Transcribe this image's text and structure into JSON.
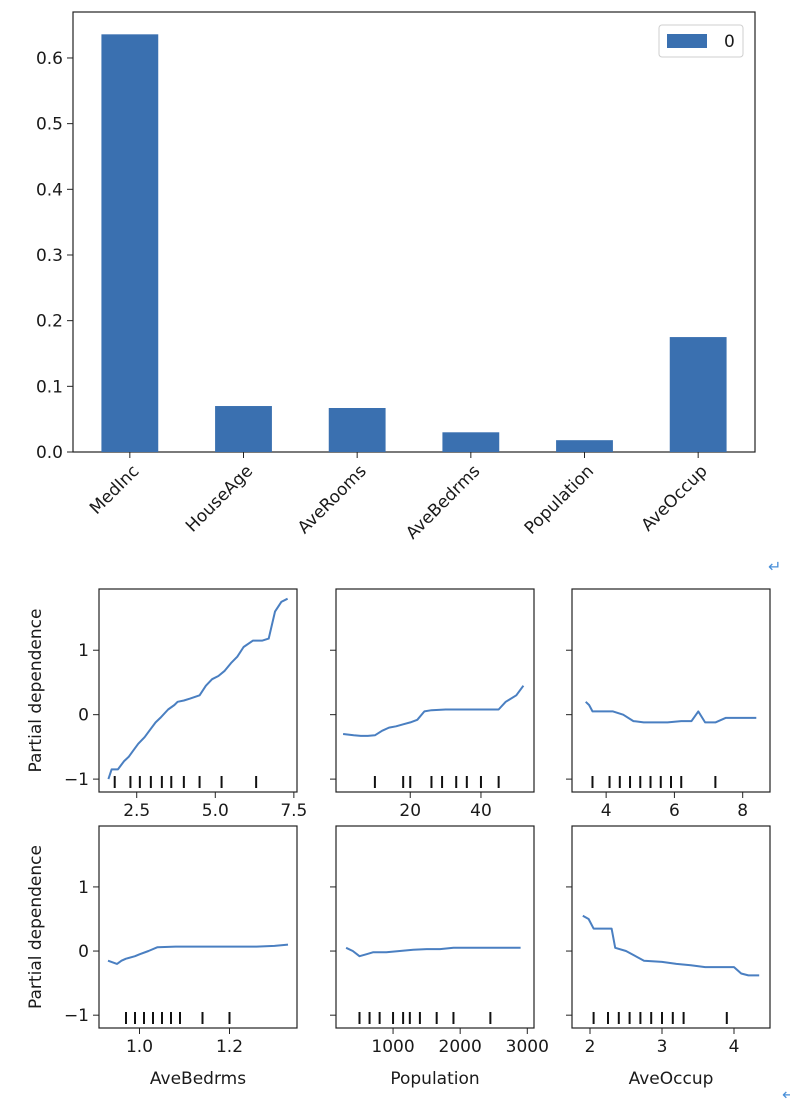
{
  "chart_data": [
    {
      "type": "bar",
      "title": "",
      "xlabel": "",
      "ylabel": "",
      "categories": [
        "MedInc",
        "HouseAge",
        "AveRooms",
        "AveBedrms",
        "Population",
        "AveOccup"
      ],
      "series": [
        {
          "name": "0",
          "values": [
            0.636,
            0.07,
            0.067,
            0.03,
            0.018,
            0.175
          ]
        }
      ],
      "ylim": [
        0,
        0.67
      ],
      "yticks": [
        "0.0",
        "0.1",
        "0.2",
        "0.3",
        "0.4",
        "0.5",
        "0.6"
      ],
      "legend": "top-right",
      "color": "#3a70b0",
      "grid": false
    },
    {
      "type": "line",
      "xlabel": "",
      "ylabel": "Partial dependence",
      "xlim": [
        1.3,
        7.6
      ],
      "ylim": [
        -1.2,
        1.95
      ],
      "xticks": [
        "2.5",
        "5.0",
        "7.5"
      ],
      "yticks": [
        "-1",
        "0",
        "1"
      ],
      "x": [
        1.6,
        1.7,
        1.9,
        2.1,
        2.25,
        2.4,
        2.55,
        2.75,
        2.9,
        3.1,
        3.25,
        3.5,
        3.7,
        3.8,
        4.0,
        4.2,
        4.5,
        4.7,
        4.9,
        5.1,
        5.3,
        5.5,
        5.7,
        5.9,
        6.2,
        6.5,
        6.7,
        6.9,
        7.1,
        7.3
      ],
      "y": [
        -1.0,
        -0.85,
        -0.85,
        -0.72,
        -0.65,
        -0.55,
        -0.45,
        -0.35,
        -0.25,
        -0.12,
        -0.05,
        0.08,
        0.15,
        0.2,
        0.22,
        0.25,
        0.3,
        0.45,
        0.55,
        0.6,
        0.68,
        0.8,
        0.9,
        1.05,
        1.15,
        1.15,
        1.18,
        1.6,
        1.75,
        1.8
      ],
      "rug": [
        1.8,
        2.3,
        2.6,
        2.95,
        3.3,
        3.6,
        4.0,
        4.5,
        5.2,
        6.3
      ],
      "grid": false
    },
    {
      "type": "line",
      "xlabel": "",
      "ylabel": "",
      "xlim": [
        -1,
        55
      ],
      "ylim": [
        -1.2,
        1.95
      ],
      "xticks": [
        "20",
        "40"
      ],
      "yticks": [
        "-1",
        "0",
        "1"
      ],
      "x": [
        1,
        4,
        6,
        8,
        10,
        12,
        14,
        16,
        18,
        20,
        22,
        24,
        26,
        30,
        35,
        40,
        45,
        47,
        50,
        52
      ],
      "y": [
        -0.3,
        -0.32,
        -0.33,
        -0.33,
        -0.32,
        -0.25,
        -0.2,
        -0.18,
        -0.15,
        -0.12,
        -0.08,
        0.05,
        0.07,
        0.08,
        0.08,
        0.08,
        0.08,
        0.2,
        0.3,
        0.45
      ],
      "rug": [
        10,
        18,
        20,
        26,
        29,
        33,
        36,
        40,
        45
      ],
      "grid": false
    },
    {
      "type": "line",
      "xlabel": "",
      "ylabel": "",
      "xlim": [
        3.0,
        8.8
      ],
      "ylim": [
        -1.2,
        1.95
      ],
      "xticks": [
        "4",
        "6",
        "8"
      ],
      "yticks": [
        "-1",
        "0",
        "1"
      ],
      "x": [
        3.4,
        3.5,
        3.6,
        3.9,
        4.2,
        4.5,
        4.8,
        5.1,
        5.4,
        5.8,
        6.2,
        6.5,
        6.7,
        6.9,
        7.2,
        7.5,
        7.8,
        8.1,
        8.4
      ],
      "y": [
        0.2,
        0.15,
        0.05,
        0.05,
        0.05,
        0.0,
        -0.1,
        -0.12,
        -0.12,
        -0.12,
        -0.1,
        -0.1,
        0.05,
        -0.12,
        -0.12,
        -0.05,
        -0.05,
        -0.05,
        -0.05
      ],
      "rug": [
        3.6,
        4.1,
        4.4,
        4.7,
        5.0,
        5.3,
        5.6,
        5.9,
        6.2,
        7.2
      ],
      "grid": false
    },
    {
      "type": "line",
      "xlabel": "AveBedrms",
      "ylabel": "Partial dependence",
      "xlim": [
        0.91,
        1.35
      ],
      "ylim": [
        -1.2,
        1.95
      ],
      "xticks": [
        "1.0",
        "1.2"
      ],
      "yticks": [
        "-1",
        "0",
        "1"
      ],
      "x": [
        0.93,
        0.95,
        0.96,
        0.97,
        0.99,
        1.0,
        1.02,
        1.04,
        1.08,
        1.12,
        1.2,
        1.26,
        1.3,
        1.33
      ],
      "y": [
        -0.15,
        -0.2,
        -0.15,
        -0.12,
        -0.08,
        -0.05,
        0.0,
        0.06,
        0.07,
        0.07,
        0.07,
        0.07,
        0.08,
        0.1
      ],
      "rug": [
        0.97,
        0.99,
        1.01,
        1.03,
        1.05,
        1.07,
        1.09,
        1.14,
        1.2
      ],
      "grid": false
    },
    {
      "type": "line",
      "xlabel": "Population",
      "ylabel": "",
      "xlim": [
        150,
        3100
      ],
      "ylim": [
        -1.2,
        1.95
      ],
      "xticks": [
        "1000",
        "2000",
        "3000"
      ],
      "yticks": [
        "-1",
        "0",
        "1"
      ],
      "x": [
        300,
        400,
        500,
        600,
        700,
        900,
        1100,
        1300,
        1500,
        1700,
        1900,
        2100,
        2400,
        2700,
        2900
      ],
      "y": [
        0.05,
        0.0,
        -0.08,
        -0.05,
        -0.02,
        -0.02,
        0.0,
        0.02,
        0.03,
        0.03,
        0.05,
        0.05,
        0.05,
        0.05,
        0.05
      ],
      "rug": [
        500,
        650,
        800,
        1000,
        1150,
        1250,
        1400,
        1650,
        1900,
        2450
      ],
      "grid": false
    },
    {
      "type": "line",
      "xlabel": "AveOccup",
      "ylabel": "",
      "xlim": [
        1.75,
        4.5
      ],
      "ylim": [
        -1.2,
        1.95
      ],
      "xticks": [
        "2",
        "3",
        "4"
      ],
      "yticks": [
        "-1",
        "0",
        "1"
      ],
      "x": [
        1.9,
        1.98,
        2.05,
        2.3,
        2.35,
        2.5,
        2.75,
        3.0,
        3.2,
        3.4,
        3.6,
        3.8,
        4.0,
        4.1,
        4.2,
        4.35
      ],
      "y": [
        0.55,
        0.5,
        0.35,
        0.35,
        0.05,
        0.0,
        -0.15,
        -0.17,
        -0.2,
        -0.22,
        -0.25,
        -0.25,
        -0.25,
        -0.35,
        -0.38,
        -0.38
      ],
      "rug": [
        2.05,
        2.25,
        2.4,
        2.55,
        2.7,
        2.85,
        3.0,
        3.15,
        3.3,
        3.9
      ],
      "grid": false
    }
  ]
}
